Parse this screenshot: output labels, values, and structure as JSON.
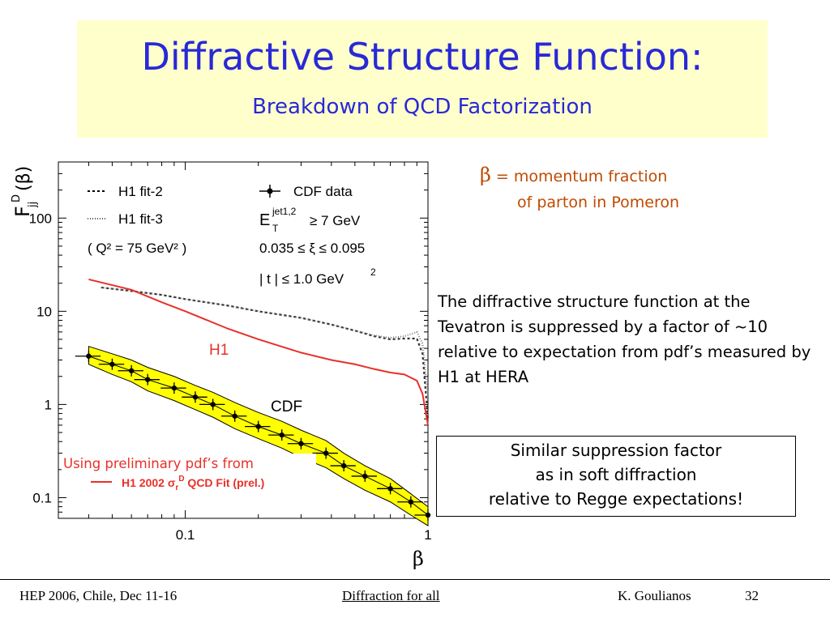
{
  "slide": {
    "title": "Diffractive Structure Function:",
    "subtitle": "Breakdown of QCD Factorization",
    "beta_symbol": "β",
    "beta_def_line1": "= momentum fraction",
    "beta_def_line2": "of parton in Pomeron",
    "description": "The diffractive structure function at the Tevatron is suppressed by  a factor of ~10 relative to expectation from pdf’s measured by H1 at HERA",
    "box_line1": "Similar suppression factor",
    "box_line2": "as in soft diffraction",
    "box_line3": "relative to Regge expectations!"
  },
  "footer": {
    "conference": "HEP 2006, Chile, Dec 11-16",
    "center": "Diffraction for all",
    "author": "K. Goulianos",
    "page": "32"
  },
  "colors": {
    "title": "#2929d6",
    "title_bg": "#ffffcc",
    "beta_def": "#c04a00",
    "h1_curve": "#e8302a",
    "cdf_band": "#ffff00",
    "annotation_red": "#e8302a"
  },
  "chart_data": {
    "type": "line",
    "x_scale": "log",
    "y_scale": "log",
    "xlim": [
      0.03,
      1.0
    ],
    "ylim": [
      0.06,
      400
    ],
    "xlabel": "β",
    "ylabel": "F",
    "ylabel_sup": "D",
    "ylabel_sub": "jj",
    "ylabel_arg": "(β)",
    "x_ticks": [
      {
        "v": 0.1,
        "label": "0.1"
      },
      {
        "v": 1,
        "label": "1"
      }
    ],
    "y_ticks": [
      {
        "v": 0.1,
        "label": "0.1"
      },
      {
        "v": 1,
        "label": "1"
      },
      {
        "v": 10,
        "label": "10"
      },
      {
        "v": 100,
        "label": "100"
      }
    ],
    "legend": [
      {
        "style": "dotted",
        "label": "H1 fit-2"
      },
      {
        "style": "fine-dotted",
        "label": "H1 fit-3"
      },
      {
        "style": "none",
        "label": "( Q² = 75 GeV² )"
      },
      {
        "style": "marker",
        "label": "CDF data"
      }
    ],
    "cuts": [
      "E_T^jet1,2 ≥ 7 GeV",
      "0.035 ≤ ξ ≤ 0.095",
      "| t | ≤ 1.0 GeV²"
    ],
    "cut_et_main": "E",
    "cut_et_sub": "T",
    "cut_et_sup": "jet1,2",
    "cut_et_rest": "≥ 7 GeV",
    "cut_xi": "0.035 ≤ ξ ≤ 0.095",
    "cut_t_main": "| t | ≤ 1.0 GeV",
    "cut_t_sup": "2",
    "annotations": {
      "h1_label": "H1",
      "cdf_label": "CDF",
      "prelim_text": "Using preliminary pdf’s from",
      "prelim_fit_pre": "H1 2002 σ",
      "prelim_fit_sub": "r",
      "prelim_fit_sup": "D",
      "prelim_fit_post": " QCD Fit (prel.)"
    },
    "series": [
      {
        "name": "H1 fit-2",
        "style": "dotted",
        "x": [
          0.045,
          0.06,
          0.08,
          0.1,
          0.15,
          0.2,
          0.3,
          0.4,
          0.5,
          0.6,
          0.7,
          0.8,
          0.9,
          0.95,
          1.0
        ],
        "y": [
          18,
          16.5,
          15,
          13.5,
          11.5,
          10,
          8.5,
          7.2,
          6.2,
          5.4,
          5.0,
          5.1,
          5.1,
          3.5,
          0.7
        ]
      },
      {
        "name": "H1 fit-3",
        "style": "fine-dotted",
        "x": [
          0.045,
          0.06,
          0.08,
          0.1,
          0.15,
          0.2,
          0.3,
          0.4,
          0.5,
          0.6,
          0.7,
          0.8,
          0.9,
          0.95,
          1.0
        ],
        "y": [
          18,
          16.5,
          15,
          13.5,
          11.5,
          10,
          8.5,
          7.2,
          6.2,
          5.5,
          5.2,
          5.4,
          6.0,
          4.5,
          1.2
        ]
      },
      {
        "name": "H1",
        "style": "solid-red",
        "x": [
          0.04,
          0.06,
          0.08,
          0.1,
          0.15,
          0.2,
          0.3,
          0.4,
          0.5,
          0.6,
          0.7,
          0.8,
          0.9,
          0.95,
          1.0
        ],
        "y": [
          22,
          17,
          12.5,
          10,
          6.5,
          5.0,
          3.6,
          3.0,
          2.7,
          2.4,
          2.2,
          2.1,
          1.8,
          1.3,
          0.6
        ]
      },
      {
        "name": "CDF",
        "style": "markers",
        "x": [
          0.04,
          0.05,
          0.06,
          0.07,
          0.09,
          0.11,
          0.13,
          0.16,
          0.2,
          0.25,
          0.3,
          0.38,
          0.45,
          0.55,
          0.7,
          0.85,
          1.0
        ],
        "y": [
          3.3,
          2.7,
          2.3,
          1.85,
          1.5,
          1.2,
          1.0,
          0.75,
          0.58,
          0.47,
          0.38,
          0.3,
          0.22,
          0.17,
          0.125,
          0.09,
          0.065
        ],
        "band_upper": [
          4.2,
          3.5,
          3.0,
          2.5,
          2.0,
          1.6,
          1.35,
          1.05,
          0.82,
          0.66,
          0.53,
          0.41,
          0.3,
          0.22,
          0.16,
          0.11,
          0.08
        ],
        "band_lower": [
          2.7,
          2.1,
          1.75,
          1.4,
          1.1,
          0.88,
          0.73,
          0.55,
          0.43,
          0.34,
          0.27,
          0.21,
          0.16,
          0.12,
          0.09,
          0.065,
          0.05
        ]
      }
    ]
  }
}
